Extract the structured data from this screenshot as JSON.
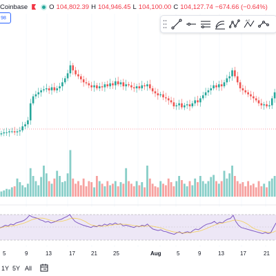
{
  "header": {
    "exchange": "Coinbase",
    "ohlc": [
      {
        "key": "O",
        "value": "104,802.39"
      },
      {
        "key": "H",
        "value": "104,946.45"
      },
      {
        "key": "L",
        "value": "104,100.00"
      },
      {
        "key": "C",
        "value": "104,127.74"
      }
    ],
    "change": "−674.66 (−0.64%)",
    "badge": "98"
  },
  "toolbar": {
    "tools": [
      "grip-icon",
      "trend-line-icon",
      "ray-icon",
      "parallel-channel-icon",
      "regression-trend-icon",
      "xabcd-pattern-icon",
      "abcd-pattern-icon",
      "path-icon"
    ]
  },
  "xaxis": {
    "labels": [
      {
        "text": "5"
      },
      {
        "text": "9"
      },
      {
        "text": "13"
      },
      {
        "text": "17"
      },
      {
        "text": "21"
      },
      {
        "text": "25"
      },
      {
        "text": "Aug"
      },
      {
        "text": "5"
      },
      {
        "text": "9"
      },
      {
        "text": "13"
      },
      {
        "text": "17"
      },
      {
        "text": "21"
      }
    ]
  },
  "bottom": {
    "ranges": [
      "1Y",
      "5Y",
      "All"
    ]
  },
  "colors": {
    "up": "#26a69a",
    "down": "#ef5350",
    "rsi_line": "#7e57c2",
    "rsi_band": "#ede7f6"
  },
  "chart_data": {
    "type": "candlestick",
    "closes": [
      0.15,
      0.16,
      0.16,
      0.17,
      0.17,
      0.16,
      0.17,
      0.18,
      0.22,
      0.24,
      0.28,
      0.45,
      0.52,
      0.54,
      0.56,
      0.58,
      0.59,
      0.6,
      0.58,
      0.61,
      0.58,
      0.6,
      0.62,
      0.66,
      0.7,
      0.75,
      0.83,
      0.78,
      0.74,
      0.72,
      0.69,
      0.66,
      0.65,
      0.63,
      0.61,
      0.63,
      0.6,
      0.62,
      0.61,
      0.64,
      0.62,
      0.65,
      0.63,
      0.67,
      0.64,
      0.66,
      0.62,
      0.64,
      0.63,
      0.61,
      0.6,
      0.62,
      0.6,
      0.63,
      0.62,
      0.64,
      0.6,
      0.57,
      0.55,
      0.53,
      0.54,
      0.51,
      0.5,
      0.48,
      0.46,
      0.42,
      0.43,
      0.45,
      0.41,
      0.43,
      0.44,
      0.42,
      0.45,
      0.48,
      0.46,
      0.5,
      0.53,
      0.56,
      0.58,
      0.6,
      0.63,
      0.61,
      0.64,
      0.62,
      0.66,
      0.7,
      0.72,
      0.78,
      0.72,
      0.66,
      0.6,
      0.58,
      0.56,
      0.54,
      0.52,
      0.5,
      0.48,
      0.45,
      0.43,
      0.44,
      0.42,
      0.43,
      0.5,
      0.56
    ],
    "volumes": [
      0.1,
      0.12,
      0.15,
      0.14,
      0.18,
      0.2,
      0.35,
      0.28,
      0.22,
      0.18,
      0.25,
      0.55,
      0.4,
      0.3,
      0.22,
      0.38,
      0.6,
      0.45,
      0.3,
      0.25,
      0.35,
      0.5,
      0.4,
      0.28,
      0.3,
      0.45,
      0.9,
      0.35,
      0.25,
      0.3,
      0.22,
      0.35,
      0.2,
      0.3,
      0.28,
      0.18,
      0.4,
      0.3,
      0.25,
      0.2,
      0.3,
      0.22,
      0.25,
      0.3,
      0.2,
      0.28,
      0.25,
      0.55,
      0.3,
      0.25,
      0.2,
      0.3,
      0.22,
      0.28,
      0.18,
      0.6,
      0.35,
      0.25,
      0.2,
      0.18,
      0.3,
      0.25,
      0.22,
      0.35,
      0.28,
      0.2,
      0.3,
      0.4,
      0.32,
      0.25,
      0.2,
      0.3,
      0.22,
      0.35,
      0.28,
      0.4,
      0.3,
      0.25,
      0.3,
      0.38,
      0.42,
      0.3,
      0.25,
      0.3,
      0.5,
      0.35,
      0.45,
      0.6,
      0.4,
      0.3,
      0.25,
      0.28,
      0.2,
      0.3,
      0.22,
      0.25,
      0.18,
      0.3,
      0.2,
      0.25,
      0.18,
      0.3,
      0.35,
      0.4
    ],
    "rsi": [
      45,
      48,
      52,
      50,
      55,
      53,
      58,
      60,
      62,
      65,
      70,
      78,
      74,
      72,
      70,
      66,
      64,
      60,
      62,
      58,
      60,
      63,
      66,
      68,
      72,
      75,
      80,
      70,
      62,
      58,
      55,
      52,
      50,
      48,
      46,
      50,
      48,
      52,
      50,
      55,
      52,
      56,
      54,
      58,
      54,
      56,
      50,
      52,
      50,
      48,
      46,
      50,
      48,
      52,
      50,
      55,
      48,
      42,
      40,
      38,
      40,
      36,
      35,
      32,
      30,
      28,
      32,
      35,
      30,
      33,
      35,
      32,
      38,
      42,
      40,
      45,
      50,
      54,
      56,
      58,
      62,
      56,
      60,
      58,
      64,
      68,
      70,
      78,
      62,
      52,
      46,
      44,
      42,
      40,
      38,
      36,
      34,
      32,
      30,
      33,
      30,
      32,
      45,
      58
    ]
  }
}
